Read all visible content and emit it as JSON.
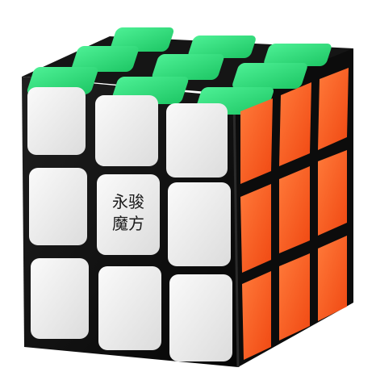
{
  "object": {
    "type": "3x3 puzzle cube",
    "body_color": "#0b0b0b"
  },
  "logo": {
    "line1": "永骏",
    "line2": "魔方"
  },
  "faces": {
    "top": {
      "color": "#2fe07a",
      "grid": [
        [
          "green",
          "green",
          "green"
        ],
        [
          "green",
          "green",
          "green"
        ],
        [
          "green",
          "green",
          "green"
        ]
      ]
    },
    "front": {
      "color": "#ececec",
      "grid": [
        [
          "white",
          "white",
          "white"
        ],
        [
          "white",
          "white-logo",
          "white"
        ],
        [
          "white",
          "white",
          "white"
        ]
      ]
    },
    "right": {
      "color": "#ff5a1e",
      "grid": [
        [
          "orange",
          "orange",
          "orange"
        ],
        [
          "orange",
          "orange",
          "orange"
        ],
        [
          "orange",
          "orange",
          "orange"
        ]
      ]
    }
  }
}
